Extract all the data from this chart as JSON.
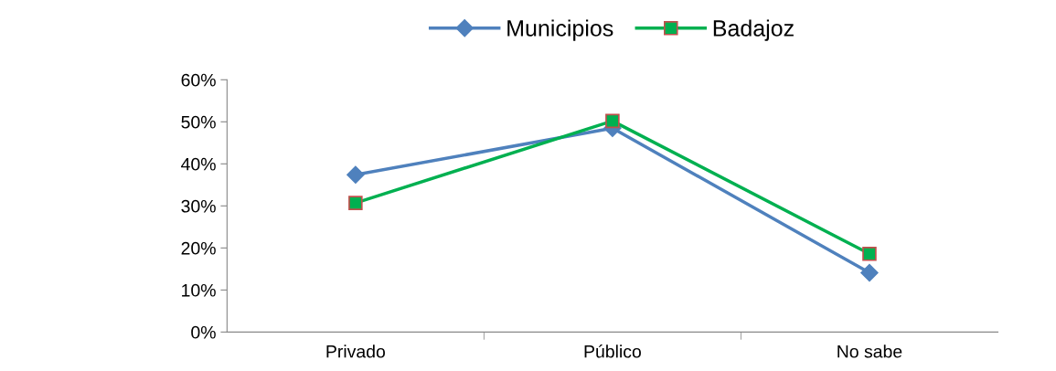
{
  "chart_data": {
    "type": "line",
    "categories": [
      "Privado",
      "Público",
      "No sabe"
    ],
    "series": [
      {
        "name": "Municipios",
        "color": "#4f81bd",
        "marker": "diamond",
        "values": [
          37.4,
          48.5,
          14.1
        ]
      },
      {
        "name": "Badajoz",
        "color": "#00b050",
        "marker": "square",
        "values": [
          30.7,
          50.2,
          18.6
        ]
      }
    ],
    "ylim": [
      0,
      60
    ],
    "yticks": [
      {
        "value": 0,
        "label": "0%"
      },
      {
        "value": 10,
        "label": "10%"
      },
      {
        "value": 20,
        "label": "20%"
      },
      {
        "value": 30,
        "label": "30%"
      },
      {
        "value": 40,
        "label": "40%"
      },
      {
        "value": 50,
        "label": "50%"
      },
      {
        "value": 60,
        "label": "60%"
      }
    ],
    "grid": false,
    "legend": "top",
    "line_style": "solid"
  }
}
